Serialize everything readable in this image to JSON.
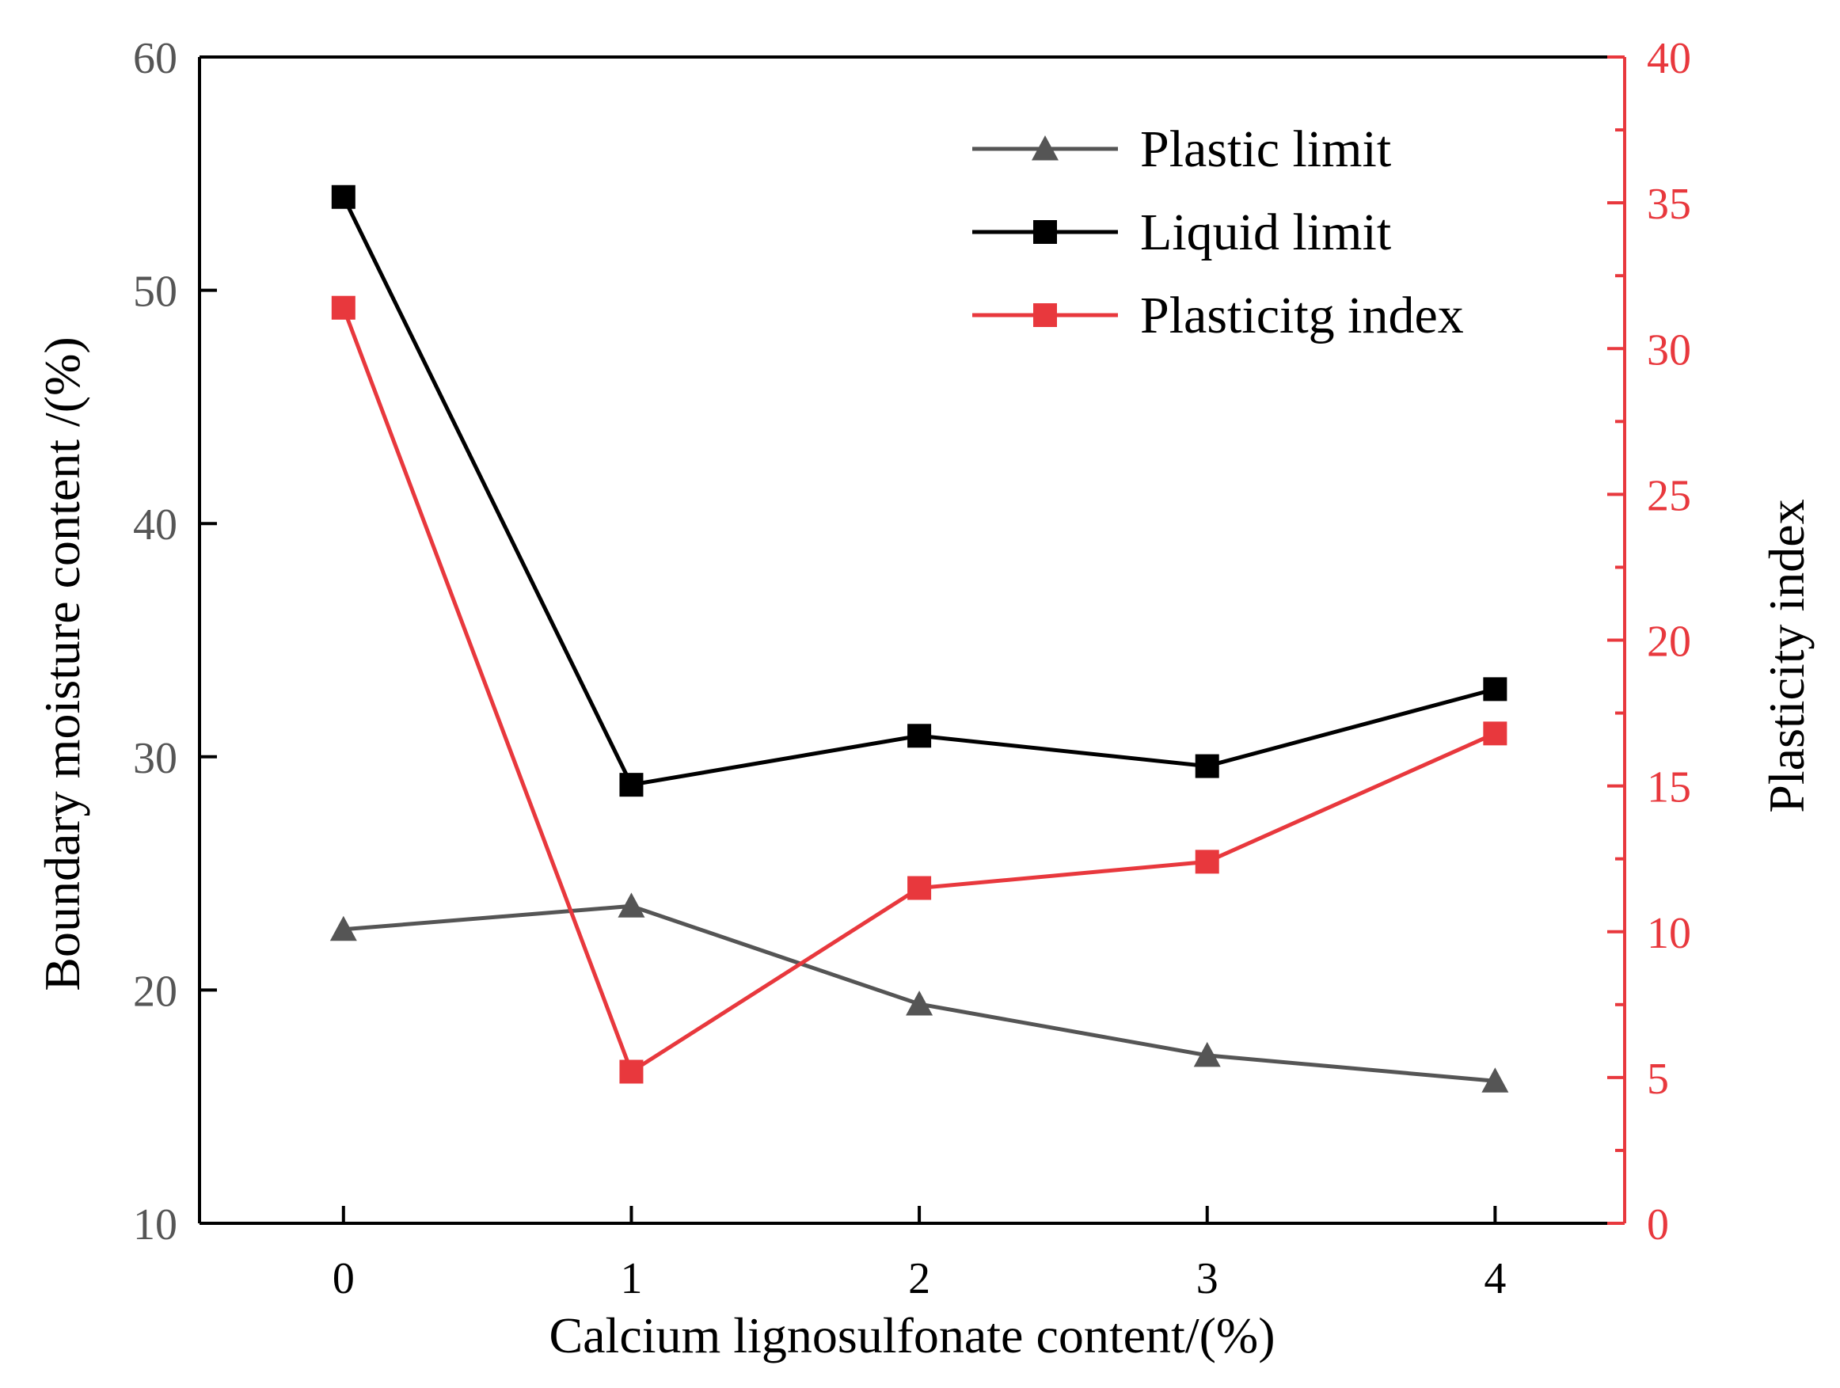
{
  "chart_data": {
    "type": "line",
    "x": [
      0,
      1,
      2,
      3,
      4
    ],
    "xlabel": "Calcium lignosulfonate content/(%)",
    "ylabel": "Boundary moisture content /(%)",
    "y2label": "Plasticity index",
    "xlim": [
      -0.5,
      4.45
    ],
    "ylim": [
      10,
      60
    ],
    "y2lim": [
      0,
      40
    ],
    "xticks": [
      "0",
      "1",
      "2",
      "3",
      "4"
    ],
    "yticks": [
      "10",
      "20",
      "30",
      "40",
      "50",
      "60"
    ],
    "y2ticks": [
      "0",
      "5",
      "10",
      "15",
      "20",
      "25",
      "30",
      "35",
      "40"
    ],
    "legend_position": "top-right",
    "grid": false,
    "series": [
      {
        "name": "Plastic limit",
        "axis": "left",
        "marker": "triangle",
        "color": "#555555",
        "values": [
          22.6,
          23.6,
          19.4,
          17.2,
          16.1
        ]
      },
      {
        "name": "Liquid limit",
        "axis": "left",
        "marker": "square",
        "color": "#000000",
        "values": [
          54.0,
          28.8,
          30.9,
          29.6,
          32.9
        ]
      },
      {
        "name": "Plasticitg index",
        "axis": "right",
        "marker": "square",
        "color": "#e8383d",
        "values": [
          31.4,
          5.2,
          11.5,
          12.4,
          16.8
        ]
      }
    ],
    "colors": {
      "left_axis": "#555555",
      "right_axis": "#e8383d"
    }
  }
}
